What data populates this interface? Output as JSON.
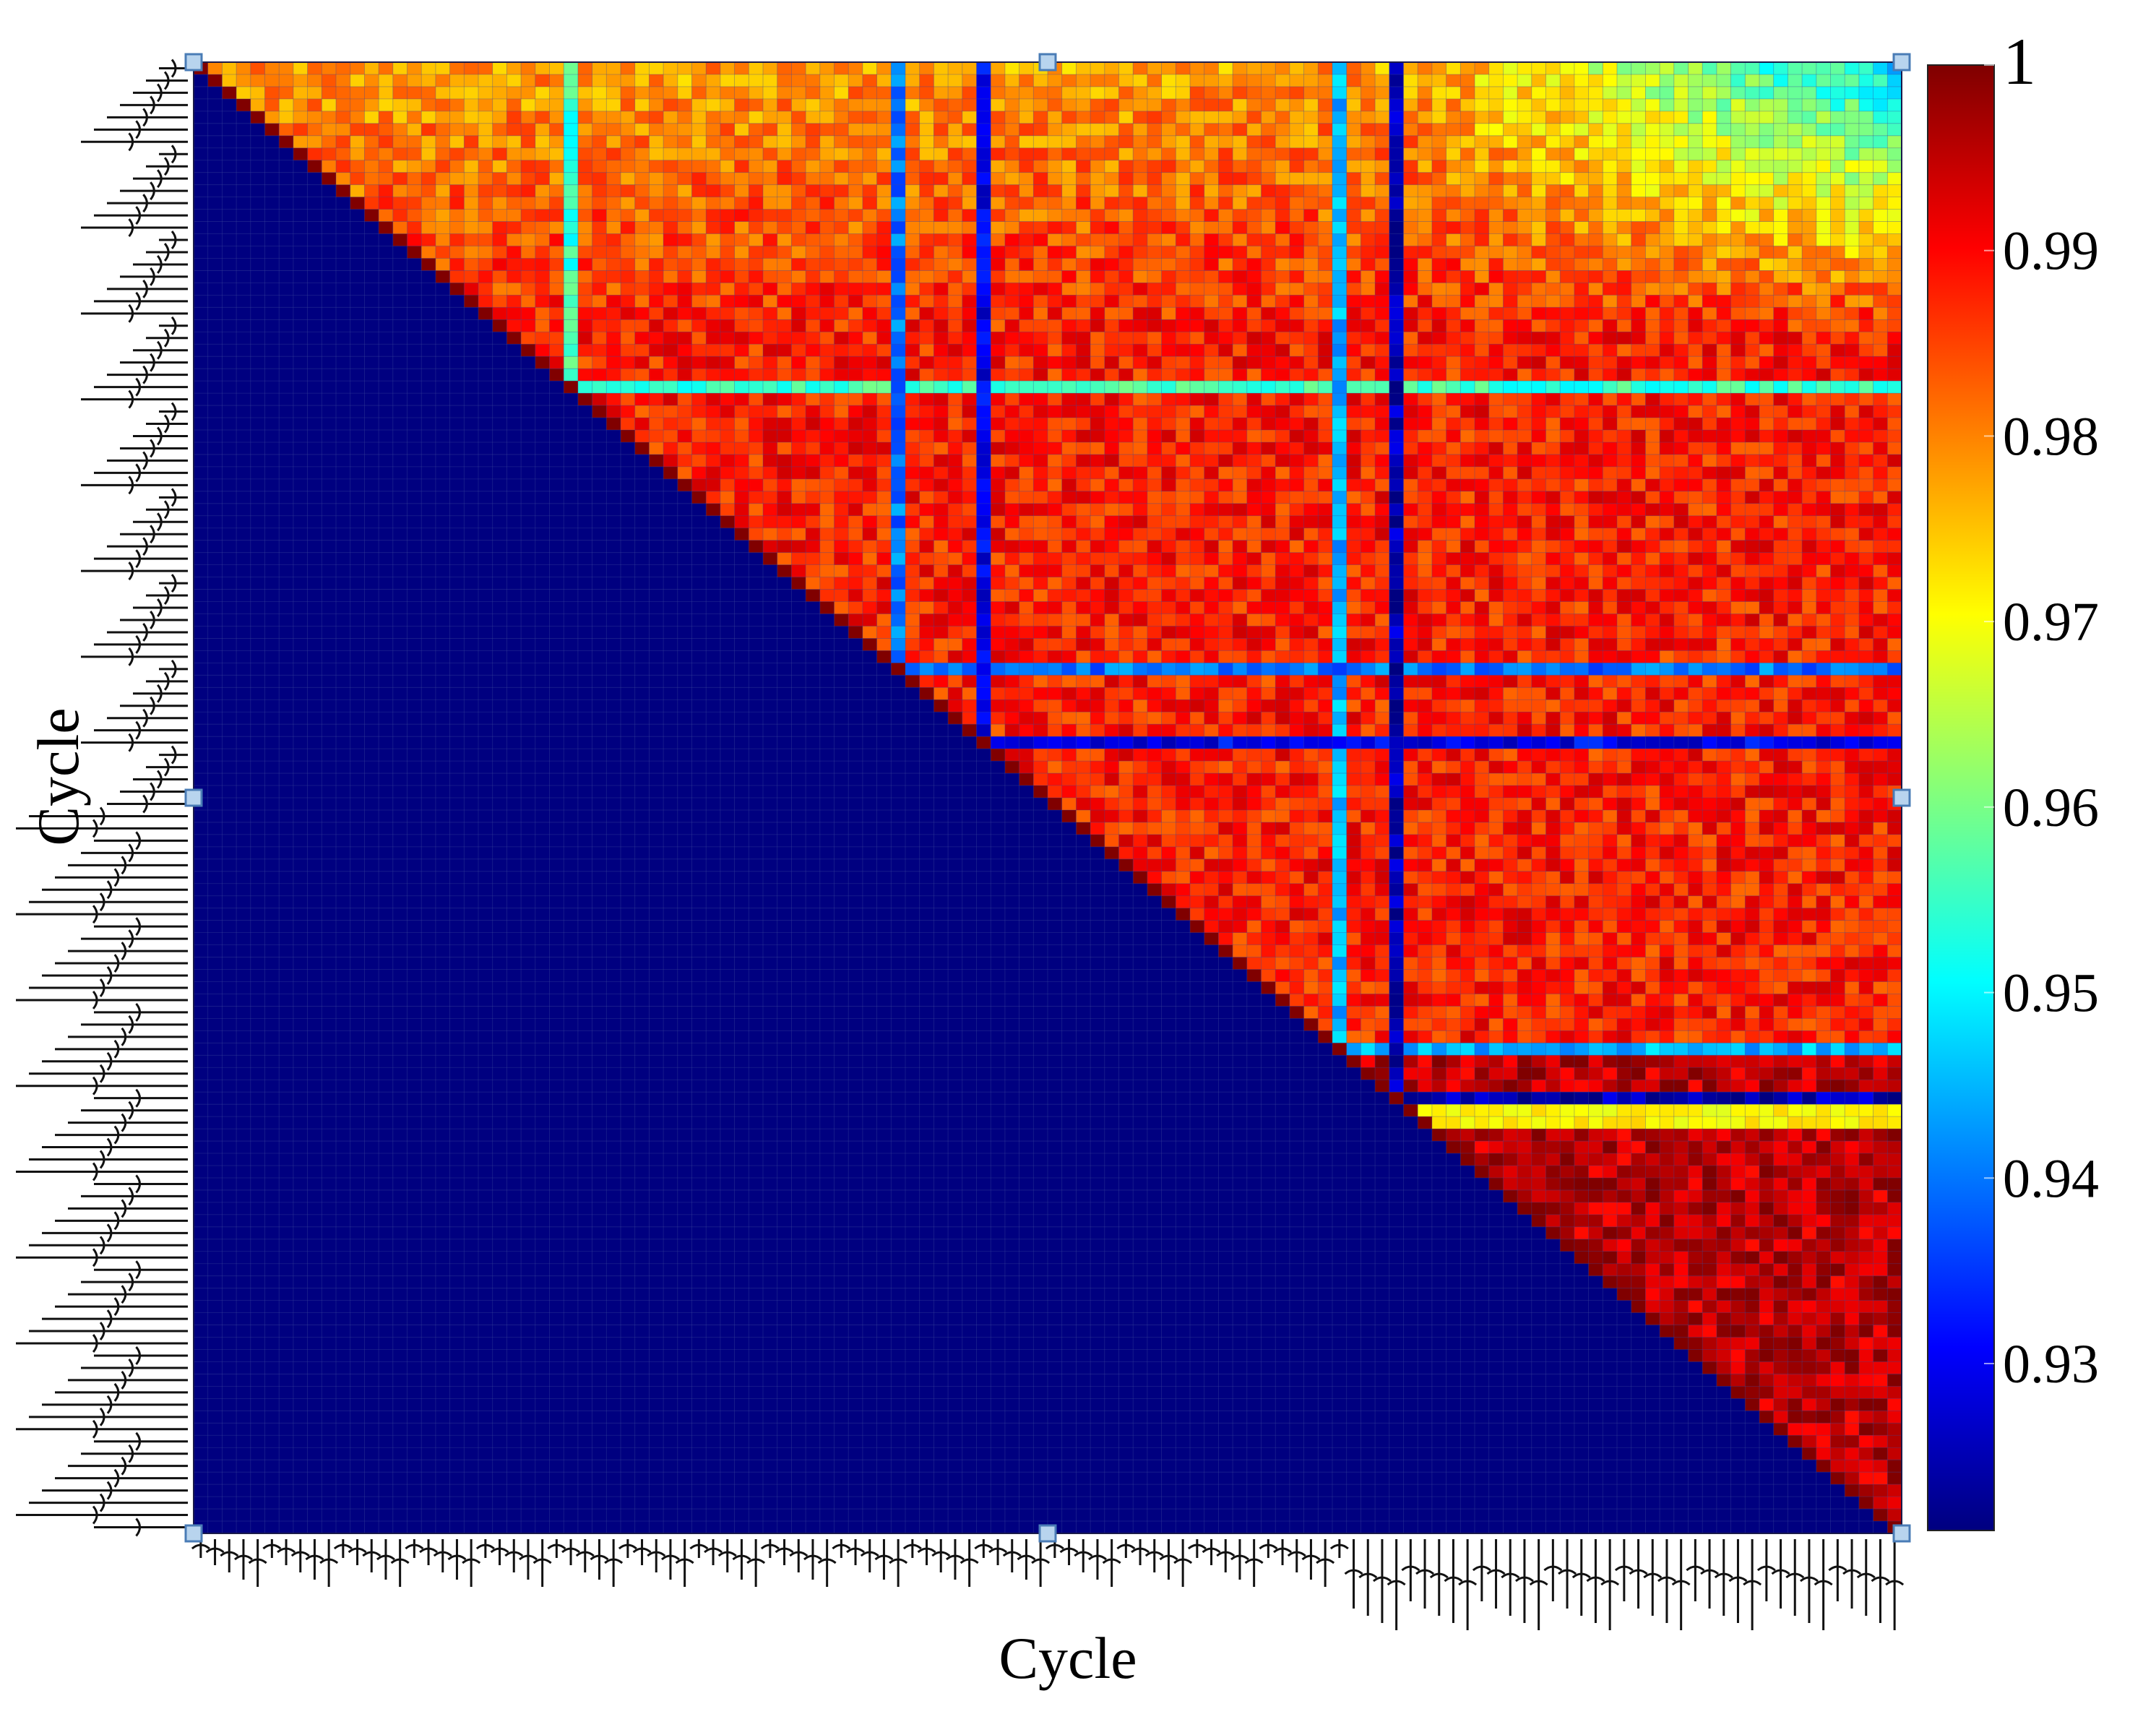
{
  "chart_data": {
    "type": "heatmap",
    "title": "",
    "xlabel": "Cycle",
    "ylabel": "Cycle",
    "matrix_size": 120,
    "layout": "upper-triangle correlation matrix; lower triangle filled with the minimum colour",
    "colorbar": {
      "min": 0.921,
      "max": 1,
      "ticks": [
        1,
        0.99,
        0.98,
        0.97,
        0.96,
        0.95,
        0.94,
        0.93
      ],
      "tick_labels": [
        "1",
        "0.99",
        "0.98",
        "0.97",
        "0.96",
        "0.95",
        "0.94",
        "0.93"
      ],
      "colormap": "jet",
      "placement": "right"
    },
    "lower_triangle_value": 0.921,
    "notable_low_columns": [
      26,
      49,
      55,
      80,
      84
    ],
    "notable_low_values": [
      0.955,
      0.94,
      0.93,
      0.945,
      0.925
    ],
    "regions": [
      {
        "description": "early cycles (rows 1-20) vs late cycles (cols 85-120)",
        "approx_value": 0.96
      },
      {
        "description": "mid cycles (rows 30-80)",
        "approx_value": 0.985
      },
      {
        "description": "late cycles (rows 85-120) mutual",
        "approx_value": 0.997
      }
    ],
    "grid": true
  },
  "colors": {
    "background": "#ffffff",
    "grid_line": "#3c4a9c",
    "handle_fill": "#b8d4ee",
    "handle_stroke": "#4a7cb6",
    "axis_text": "#000000"
  }
}
